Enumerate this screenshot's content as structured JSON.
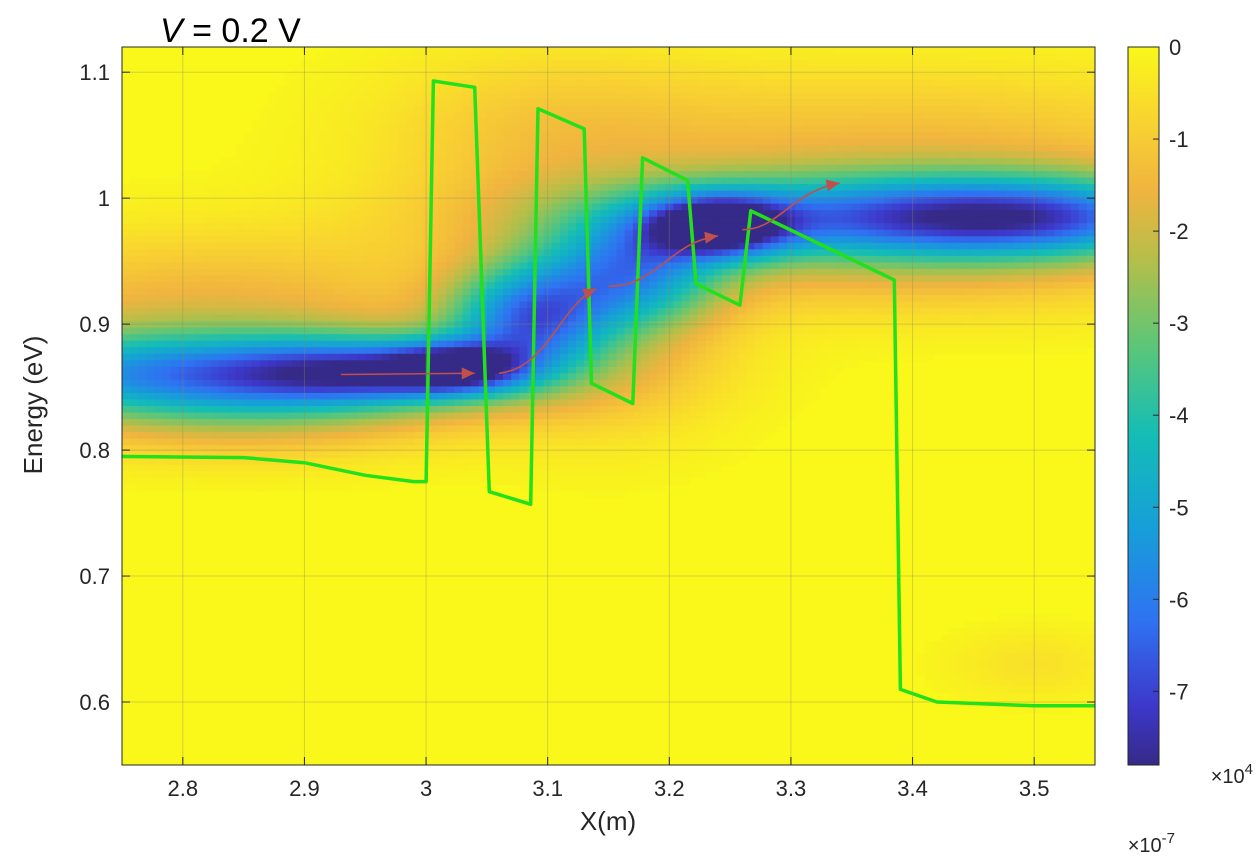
{
  "chart_data": {
    "type": "heatmap",
    "title": {
      "var": "V",
      "rest": " = 0.2 V"
    },
    "xlabel": "X(m)",
    "ylabel": "Energy (eV)",
    "x_exponent": "×10",
    "x_exponent_power": "-7",
    "xlim": [
      2.75,
      3.55
    ],
    "ylim": [
      0.55,
      1.12
    ],
    "xticks": [
      "2.8",
      "2.9",
      "3",
      "3.1",
      "3.2",
      "3.3",
      "3.4",
      "3.5"
    ],
    "xtick_values": [
      2.8,
      2.9,
      3.0,
      3.1,
      3.2,
      3.3,
      3.4,
      3.5
    ],
    "yticks": [
      "0.6",
      "0.7",
      "0.8",
      "0.9",
      "1",
      "1.1"
    ],
    "ytick_values": [
      0.6,
      0.7,
      0.8,
      0.9,
      1.0,
      1.1
    ],
    "grid": true,
    "colormap": "parula",
    "colorbar": {
      "range": [
        -7.8,
        0
      ],
      "ticks": [
        "0",
        "-1",
        "-2",
        "-3",
        "-4",
        "-5",
        "-6",
        "-7"
      ],
      "tick_values": [
        0,
        -1,
        -2,
        -3,
        -4,
        -5,
        -6,
        -7
      ],
      "exponent": "×10",
      "exponent_power": "4"
    },
    "band_profile": {
      "color": "#22e01c",
      "x": [
        2.75,
        2.85,
        2.9,
        2.95,
        2.99,
        3.0,
        3.006,
        3.04,
        3.052,
        3.086,
        3.092,
        3.13,
        3.136,
        3.17,
        3.178,
        3.215,
        3.222,
        3.258,
        3.267,
        3.385,
        3.39,
        3.42,
        3.5,
        3.55
      ],
      "y": [
        0.795,
        0.794,
        0.79,
        0.78,
        0.775,
        0.775,
        1.093,
        1.088,
        0.767,
        0.757,
        1.071,
        1.055,
        0.853,
        0.837,
        1.032,
        1.014,
        0.932,
        0.915,
        0.99,
        0.935,
        0.61,
        0.6,
        0.597,
        0.597
      ]
    },
    "transport_arrows": {
      "color": "#c0504d",
      "paths": [
        [
          [
            2.93,
            0.86
          ],
          [
            3.04,
            0.861
          ]
        ],
        [
          [
            3.06,
            0.861
          ],
          [
            3.1,
            0.865
          ],
          [
            3.11,
            0.915
          ],
          [
            3.14,
            0.928
          ]
        ],
        [
          [
            3.15,
            0.93
          ],
          [
            3.19,
            0.93
          ],
          [
            3.2,
            0.965
          ],
          [
            3.24,
            0.97
          ]
        ],
        [
          [
            3.26,
            0.975
          ],
          [
            3.29,
            0.975
          ],
          [
            3.3,
            1.005
          ],
          [
            3.34,
            1.012
          ]
        ]
      ]
    },
    "density_blobs": [
      {
        "cx": 2.82,
        "cy": 0.86,
        "sx": 0.16,
        "sy": 0.024,
        "amp": -5.2
      },
      {
        "cx": 2.95,
        "cy": 0.862,
        "sx": 0.07,
        "sy": 0.018,
        "amp": -3.2
      },
      {
        "cx": 3.025,
        "cy": 0.865,
        "sx": 0.04,
        "sy": 0.014,
        "amp": -4.6
      },
      {
        "cx": 3.085,
        "cy": 0.905,
        "sx": 0.045,
        "sy": 0.03,
        "amp": -5.0
      },
      {
        "cx": 3.17,
        "cy": 0.94,
        "sx": 0.05,
        "sy": 0.03,
        "amp": -4.2
      },
      {
        "cx": 3.24,
        "cy": 0.978,
        "sx": 0.04,
        "sy": 0.017,
        "amp": -5.6
      },
      {
        "cx": 3.36,
        "cy": 0.985,
        "sx": 0.17,
        "sy": 0.024,
        "amp": -4.3
      },
      {
        "cx": 3.5,
        "cy": 0.985,
        "sx": 0.1,
        "sy": 0.022,
        "amp": -3.6
      },
      {
        "cx": 2.82,
        "cy": 0.915,
        "sx": 0.16,
        "sy": 0.04,
        "amp": -1.5
      },
      {
        "cx": 2.85,
        "cy": 0.825,
        "sx": 0.12,
        "sy": 0.025,
        "amp": -1.3
      },
      {
        "cx": 3.1,
        "cy": 1.05,
        "sx": 0.1,
        "sy": 0.05,
        "amp": -0.9
      },
      {
        "cx": 3.4,
        "cy": 1.035,
        "sx": 0.2,
        "sy": 0.045,
        "amp": -1.4
      },
      {
        "cx": 3.4,
        "cy": 0.945,
        "sx": 0.18,
        "sy": 0.03,
        "amp": -1.2
      },
      {
        "cx": 3.15,
        "cy": 0.88,
        "sx": 0.07,
        "sy": 0.05,
        "amp": -1.1
      },
      {
        "cx": 3.5,
        "cy": 0.63,
        "sx": 0.05,
        "sy": 0.02,
        "amp": -0.5
      }
    ]
  }
}
